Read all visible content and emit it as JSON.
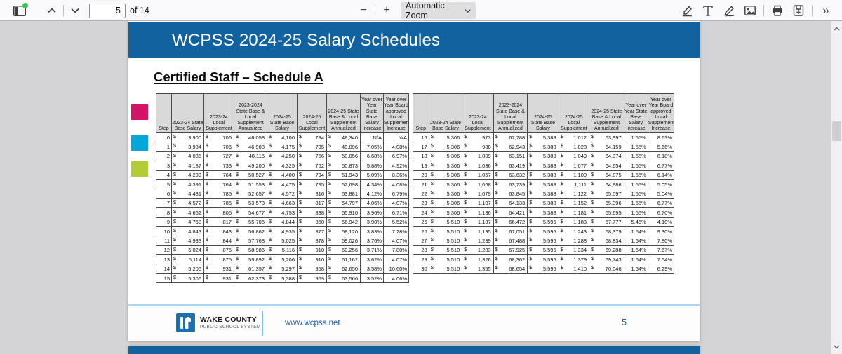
{
  "toolbar": {
    "page_input": "5",
    "page_count_label": "of 14",
    "zoom_label": "Automatic Zoom"
  },
  "page": {
    "banner_title": "WCPSS 2024-25 Salary Schedules",
    "section_title": "Certified Staff – Schedule A",
    "accent_squares": [
      "#d21368",
      "#00a7db",
      "#b5cb35"
    ],
    "footer": {
      "logo_title": "WAKE COUNTY",
      "logo_subtitle": "PUBLIC SCHOOL SYSTEM",
      "website": "www.wcpss.net",
      "page_number": "5"
    }
  },
  "colors": {
    "banner_blue": "#1262a0",
    "link_blue": "#1b5fa8",
    "table_header_gray": "#d9d9d9",
    "footer_rule_blue": "#a7d6ee"
  },
  "salary_table": {
    "currency_symbol": "$",
    "headers": [
      "Step",
      "2023-24 State Base Salary",
      "2023-24 Local Supplement",
      "2023-2024 State Base & Local Supplement Annualized",
      "2024-25 State Base Salary",
      "2024-25 Local Supplement",
      "2024-25 State Base & Local Supplement Annualized",
      "Year over Year State Base Salary Increase",
      "Year over Year Board approved Local Supplement Increase"
    ],
    "left_rows": [
      [
        "0",
        "3,900",
        "706",
        "46,058",
        "4,100",
        "734",
        "48,340",
        "N/A",
        "N/A"
      ],
      [
        "1",
        "3,984",
        "706",
        "46,903",
        "4,175",
        "735",
        "49,096",
        "7.05%",
        "4.08%"
      ],
      [
        "2",
        "4,085",
        "727",
        "48,115",
        "4,250",
        "756",
        "50,056",
        "6.68%",
        "6.97%"
      ],
      [
        "3",
        "4,187",
        "733",
        "49,200",
        "4,325",
        "762",
        "50,873",
        "5.88%",
        "4.92%"
      ],
      [
        "4",
        "4,289",
        "764",
        "50,527",
        "4,400",
        "794",
        "51,943",
        "5.09%",
        "8.36%"
      ],
      [
        "5",
        "4,391",
        "764",
        "51,553",
        "4,475",
        "795",
        "52,698",
        "4.34%",
        "4.08%"
      ],
      [
        "6",
        "4,481",
        "785",
        "52,657",
        "4,572",
        "816",
        "53,881",
        "4.12%",
        "6.79%"
      ],
      [
        "7",
        "4,572",
        "785",
        "53,573",
        "4,663",
        "817",
        "54,797",
        "4.06%",
        "4.07%"
      ],
      [
        "8",
        "4,662",
        "806",
        "54,677",
        "4,753",
        "838",
        "55,910",
        "3.96%",
        "6.71%"
      ],
      [
        "9",
        "4,753",
        "817",
        "55,705",
        "4,844",
        "850",
        "56,942",
        "3.90%",
        "5.52%"
      ],
      [
        "10",
        "4,843",
        "843",
        "56,862",
        "4,935",
        "877",
        "58,120",
        "3.83%",
        "7.28%"
      ],
      [
        "11",
        "4,933",
        "844",
        "57,768",
        "5,025",
        "878",
        "59,026",
        "3.76%",
        "4.07%"
      ],
      [
        "12",
        "5,024",
        "875",
        "58,986",
        "5,116",
        "910",
        "60,256",
        "3.71%",
        "7.80%"
      ],
      [
        "13",
        "5,114",
        "875",
        "59,892",
        "5,206",
        "910",
        "61,162",
        "3.62%",
        "4.07%"
      ],
      [
        "14",
        "5,205",
        "931",
        "61,357",
        "5,297",
        "958",
        "62,650",
        "3.58%",
        "10.60%"
      ],
      [
        "15",
        "5,306",
        "931",
        "62,373",
        "5,388",
        "969",
        "63,566",
        "3.52%",
        "4.06%"
      ]
    ],
    "right_rows": [
      [
        "16",
        "5,306",
        "973",
        "62,788",
        "5,388",
        "1,012",
        "63,997",
        "1.55%",
        "8.63%"
      ],
      [
        "17",
        "5,306",
        "988",
        "62,943",
        "5,388",
        "1,028",
        "64,159",
        "1.55%",
        "5.66%"
      ],
      [
        "18",
        "5,306",
        "1,009",
        "63,151",
        "5,388",
        "1,049",
        "64,374",
        "1.55%",
        "6.18%"
      ],
      [
        "19",
        "5,306",
        "1,036",
        "63,419",
        "5,388",
        "1,077",
        "64,654",
        "1.55%",
        "6.77%"
      ],
      [
        "20",
        "5,306",
        "1,057",
        "63,632",
        "5,388",
        "1,100",
        "64,875",
        "1.55%",
        "6.14%"
      ],
      [
        "21",
        "5,306",
        "1,068",
        "63,739",
        "5,388",
        "1,111",
        "64,986",
        "1.55%",
        "5.05%"
      ],
      [
        "22",
        "5,306",
        "1,079",
        "63,845",
        "5,388",
        "1,122",
        "65,097",
        "1.55%",
        "5.04%"
      ],
      [
        "23",
        "5,306",
        "1,107",
        "64,133",
        "5,388",
        "1,152",
        "65,396",
        "1.55%",
        "6.77%"
      ],
      [
        "24",
        "5,306",
        "1,136",
        "64,421",
        "5,388",
        "1,181",
        "65,695",
        "1.55%",
        "6.70%"
      ],
      [
        "25",
        "5,510",
        "1,137",
        "66,472",
        "5,595",
        "1,183",
        "67,777",
        "5.45%",
        "4.10%"
      ],
      [
        "26",
        "5,510",
        "1,195",
        "67,051",
        "5,595",
        "1,243",
        "68,379",
        "1.54%",
        "9.30%"
      ],
      [
        "27",
        "5,510",
        "1,239",
        "67,488",
        "5,595",
        "1,288",
        "68,834",
        "1.54%",
        "7.80%"
      ],
      [
        "28",
        "5,510",
        "1,283",
        "67,925",
        "5,595",
        "1,334",
        "69,288",
        "1.54%",
        "7.67%"
      ],
      [
        "29",
        "5,510",
        "1,326",
        "68,362",
        "5,595",
        "1,379",
        "69,743",
        "1.54%",
        "7.54%"
      ],
      [
        "30",
        "5,510",
        "1,355",
        "68,654",
        "5,595",
        "1,410",
        "70,046",
        "1.54%",
        "6.29%"
      ]
    ]
  }
}
